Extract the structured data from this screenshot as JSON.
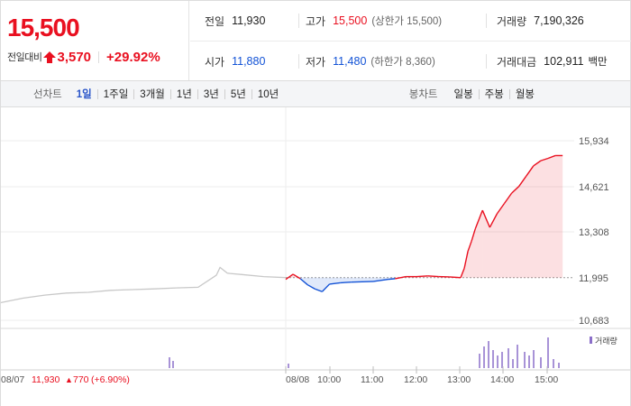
{
  "price": {
    "current": "15,500",
    "change_label": "전일대비",
    "change_amount": "3,570",
    "change_rate": "+29.92%"
  },
  "info": {
    "prev_close_label": "전일",
    "prev_close": "11,930",
    "high_label": "고가",
    "high": "15,500",
    "upper_limit": "(상한가 15,500)",
    "volume_label": "거래량",
    "volume": "7,190,326",
    "open_label": "시가",
    "open": "11,880",
    "low_label": "저가",
    "low": "11,480",
    "lower_limit": "(하한가 8,360)",
    "value_label": "거래대금",
    "value": "102,911",
    "value_unit": "백만"
  },
  "toolbar": {
    "line_label": "선차트",
    "periods": [
      "1일",
      "1주일",
      "3개월",
      "1년",
      "3년",
      "5년",
      "10년"
    ],
    "active_period": "1일",
    "candle_label": "봉차트",
    "candles": [
      "일봉",
      "주봉",
      "월봉"
    ]
  },
  "colors": {
    "up": "#e91020",
    "down": "#1252d6",
    "prev_day": "#c8c8c8",
    "volume": "#8b6fc9"
  },
  "chart_data": {
    "type": "line",
    "ylim": [
      10683,
      15934
    ],
    "y_ticks": [
      "15,934",
      "14,621",
      "13,308",
      "11,995",
      "10,683"
    ],
    "baseline": 11930,
    "x_tick_labels": [
      "08/07",
      "08/08",
      "10:00",
      "11:00",
      "12:00",
      "13:00",
      "14:00",
      "15:00"
    ],
    "prev_day_footer": {
      "date": "08/07",
      "close": "11,930",
      "change": "770",
      "rate": "(+6.90%)"
    },
    "volume_legend": "거래량",
    "prev_day": {
      "x": [
        "09:00",
        "09:30",
        "10:00",
        "10:30",
        "11:00",
        "11:30",
        "12:00",
        "12:30",
        "13:00",
        "13:30",
        "13:55",
        "14:00",
        "14:10",
        "14:30",
        "15:00",
        "15:30"
      ],
      "y": [
        11200,
        11330,
        11420,
        11480,
        11500,
        11560,
        11580,
        11600,
        11630,
        11650,
        12000,
        12230,
        12060,
        12020,
        11960,
        11930
      ]
    },
    "today": {
      "x": [
        "09:00",
        "09:10",
        "09:20",
        "09:30",
        "09:40",
        "09:50",
        "10:00",
        "10:15",
        "10:30",
        "11:00",
        "11:20",
        "11:30",
        "11:45",
        "12:00",
        "12:15",
        "12:30",
        "12:45",
        "13:00",
        "13:05",
        "13:10",
        "13:15",
        "13:20",
        "13:30",
        "13:40",
        "13:50",
        "14:00",
        "14:10",
        "14:20",
        "14:30",
        "14:40",
        "14:50",
        "15:00",
        "15:10",
        "15:20"
      ],
      "y": [
        11880,
        12030,
        11900,
        11720,
        11600,
        11520,
        11740,
        11780,
        11800,
        11820,
        11880,
        11900,
        11960,
        11960,
        11980,
        11960,
        11950,
        11930,
        12200,
        12700,
        13000,
        13350,
        13900,
        13400,
        13800,
        14100,
        14400,
        14600,
        14900,
        15200,
        15350,
        15420,
        15500,
        15500
      ]
    }
  }
}
